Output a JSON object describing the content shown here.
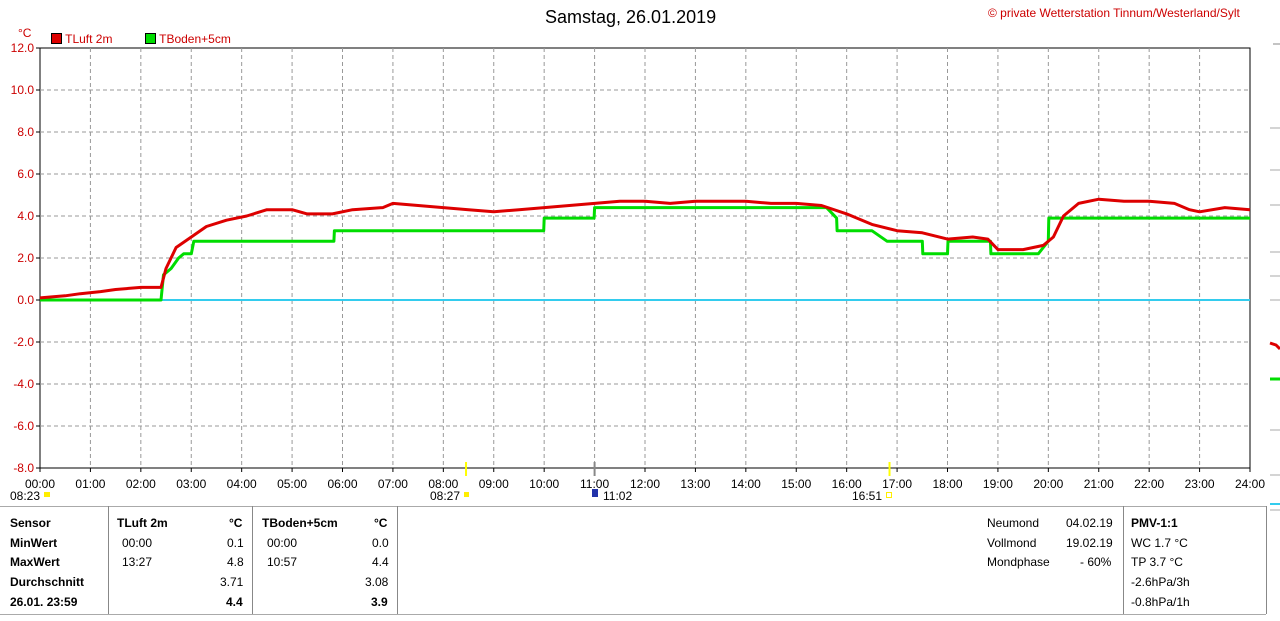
{
  "header": {
    "title": "Samstag, 26.01.2019",
    "copyright": "© private Wetterstation Tinnum/Westerland/Sylt",
    "unit": "°C"
  },
  "colors": {
    "tluft": "#dd0000",
    "tboden": "#00dd00",
    "zero_line": "#33ccee",
    "copyright": "#cc0000",
    "axis_labels": "#cc0000",
    "sun_marker": "#ffff00",
    "moon_marker": "#2233aa"
  },
  "chart_data": {
    "type": "line",
    "title": "Samstag, 26.01.2019",
    "ylabel": "°C",
    "xlabel": "",
    "ylim": [
      -8,
      12
    ],
    "xlim": [
      0,
      24
    ],
    "grid": true,
    "legend_position": "top-left",
    "y_ticks": [
      "12.0",
      "10.0",
      "8.0",
      "6.0",
      "4.0",
      "2.0",
      "0.0",
      "-2.0",
      "-4.0",
      "-6.0",
      "-8.0"
    ],
    "x_ticks": [
      "00:00",
      "01:00",
      "02:00",
      "03:00",
      "04:00",
      "05:00",
      "06:00",
      "07:00",
      "08:00",
      "09:00",
      "10:00",
      "11:00",
      "12:00",
      "13:00",
      "14:00",
      "15:00",
      "16:00",
      "17:00",
      "18:00",
      "19:00",
      "20:00",
      "21:00",
      "22:00",
      "23:00",
      "24:00"
    ],
    "series": [
      {
        "name": "TLuft 2m",
        "color": "#dd0000",
        "x": [
          0,
          0.5,
          0.8,
          1.2,
          1.5,
          2.0,
          2.4,
          2.5,
          2.7,
          3.0,
          3.3,
          3.7,
          4.1,
          4.5,
          5.0,
          5.3,
          5.8,
          6.2,
          6.8,
          7.0,
          7.5,
          8.0,
          8.5,
          9.0,
          9.5,
          10.0,
          10.5,
          11.0,
          11.5,
          12.0,
          12.5,
          13.0,
          13.5,
          14.0,
          14.5,
          15.0,
          15.5,
          16.0,
          16.5,
          17.0,
          17.5,
          18.0,
          18.5,
          18.8,
          19.0,
          19.5,
          19.9,
          20.1,
          20.3,
          20.6,
          21.0,
          21.5,
          22.0,
          22.5,
          22.8,
          23.0,
          23.5,
          24.0
        ],
        "values": [
          0.1,
          0.2,
          0.3,
          0.4,
          0.5,
          0.6,
          0.6,
          1.5,
          2.5,
          3.0,
          3.5,
          3.8,
          4.0,
          4.3,
          4.3,
          4.1,
          4.1,
          4.3,
          4.4,
          4.6,
          4.5,
          4.4,
          4.3,
          4.2,
          4.3,
          4.4,
          4.5,
          4.6,
          4.7,
          4.7,
          4.6,
          4.7,
          4.7,
          4.7,
          4.6,
          4.6,
          4.5,
          4.1,
          3.6,
          3.3,
          3.2,
          2.9,
          3.0,
          2.9,
          2.4,
          2.4,
          2.6,
          3.0,
          4.0,
          4.6,
          4.8,
          4.7,
          4.7,
          4.6,
          4.3,
          4.2,
          4.4,
          4.3
        ]
      },
      {
        "name": "TBoden+5cm",
        "color": "#00dd00",
        "x": [
          0,
          2.4,
          2.45,
          2.6,
          2.75,
          2.85,
          3.0,
          3.05,
          3.5,
          4.0,
          4.5,
          5.0,
          5.5,
          5.83,
          5.84,
          6.5,
          7.0,
          7.5,
          8.0,
          8.5,
          9.0,
          9.5,
          9.99,
          10.0,
          10.5,
          10.99,
          11.0,
          11.5,
          12.0,
          13.0,
          14.0,
          14.5,
          14.8,
          15.2,
          15.6,
          15.8,
          15.81,
          16.5,
          16.8,
          17.5,
          17.51,
          18.0,
          18.01,
          18.5,
          18.85,
          18.86,
          19.5,
          19.8,
          19.9,
          20.0,
          20.01,
          20.5,
          21.0,
          21.5,
          22.0,
          22.5,
          23.0,
          24.0
        ],
        "values": [
          0.0,
          0.0,
          1.2,
          1.5,
          2.0,
          2.2,
          2.2,
          2.8,
          2.8,
          2.8,
          2.8,
          2.8,
          2.8,
          2.8,
          3.3,
          3.3,
          3.3,
          3.3,
          3.3,
          3.3,
          3.3,
          3.3,
          3.3,
          3.9,
          3.9,
          3.9,
          4.4,
          4.4,
          4.4,
          4.4,
          4.4,
          4.4,
          4.4,
          4.4,
          4.4,
          3.9,
          3.3,
          3.3,
          2.8,
          2.8,
          2.2,
          2.2,
          2.8,
          2.8,
          2.8,
          2.2,
          2.2,
          2.2,
          2.5,
          2.8,
          3.9,
          3.9,
          3.9,
          3.9,
          3.9,
          3.9,
          3.9,
          3.9
        ]
      }
    ],
    "zero_line": {
      "y": 0.0
    }
  },
  "markers": {
    "sunrise": "08:23",
    "sunrise2": "08:27",
    "moon": "11:02",
    "sunset": "16:51"
  },
  "table": {
    "col_sensor": "Sensor",
    "rows_labels": [
      "MinWert",
      "MaxWert",
      "Durchschnitt",
      "26.01. 23:59"
    ],
    "tluft": {
      "header": "TLuft 2m",
      "unit": "°C",
      "min_time": "00:00",
      "min_val": "0.1",
      "max_time": "13:27",
      "max_val": "4.8",
      "avg": "3.71",
      "current": "4.4"
    },
    "tboden": {
      "header": "TBoden+5cm",
      "unit": "°C",
      "min_time": "00:00",
      "min_val": "0.0",
      "max_time": "10:57",
      "max_val": "4.4",
      "avg": "3.08",
      "current": "3.9"
    },
    "moon": {
      "labels": [
        "Neumond",
        "Vollmond",
        "Mondphase"
      ],
      "values": [
        "04.02.19",
        "19.02.19",
        "- 60%"
      ]
    },
    "pmv": {
      "header": "PMV-1:1",
      "lines": [
        "WC 1.7 °C",
        "TP 3.7 °C",
        "-2.6hPa/3h",
        "-0.8hPa/1h"
      ]
    }
  }
}
